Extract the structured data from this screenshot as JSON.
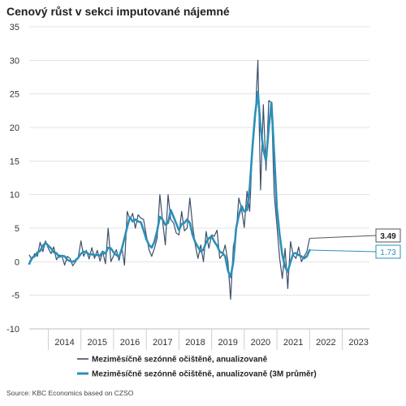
{
  "chart_data": {
    "type": "line",
    "title": "Cenový růst v sekci imputované nájemné",
    "source": "Source: KBC Economics based on CZSO",
    "ylim": [
      -10,
      35
    ],
    "yticks": [
      -10,
      -5,
      0,
      5,
      10,
      15,
      20,
      25,
      30,
      35
    ],
    "xticks": [
      "2014",
      "2015",
      "2016",
      "2017",
      "2018",
      "2019",
      "2020",
      "2021",
      "2022",
      "2023"
    ],
    "grid": true,
    "legend_position": "bottom",
    "x_start": "2013-06",
    "series": [
      {
        "name": "Meziměsíčně sezónně očištěně, anualizovaně",
        "color": "#3c4f68",
        "end_label": "3.49",
        "values": [
          1.0,
          0.3,
          1.2,
          0.8,
          2.9,
          1.5,
          3.1,
          2.0,
          1.2,
          2.2,
          0.3,
          1.0,
          0.9,
          -0.5,
          0.8,
          0.5,
          -0.6,
          0.0,
          0.6,
          3.1,
          0.8,
          1.7,
          0.4,
          2.1,
          0.5,
          1.7,
          0.1,
          1.5,
          -0.3,
          5.0,
          0.0,
          0.9,
          1.8,
          0.2,
          2.2,
          -0.5,
          7.5,
          6.3,
          7.2,
          5.0,
          7.0,
          6.5,
          6.3,
          4.0,
          1.8,
          0.8,
          2.0,
          3.5,
          10.0,
          6.1,
          2.5,
          10.0,
          6.3,
          5.8,
          4.3,
          4.0,
          7.5,
          4.6,
          5.0,
          9.5,
          5.5,
          2.5,
          0.5,
          2.5,
          0.0,
          4.5,
          2.0,
          4.0,
          3.8,
          4.7,
          0.5,
          1.0,
          2.5,
          0.0,
          -5.6,
          2.3,
          4.2,
          9.5,
          7.9,
          5.1,
          10.5,
          7.5,
          17.0,
          21.0,
          30.0,
          10.7,
          23.4,
          13.6,
          24.0,
          23.7,
          10.0,
          5.5,
          0.5,
          -2.5,
          2.0,
          -4.0,
          3.0,
          1.0,
          0.5,
          2.2,
          0.0,
          0.8,
          1.5,
          3.49
        ]
      },
      {
        "name": "Meziměsíčně sezónně očištěně, anualizovaně (3M průměr)",
        "color": "#2c8fb8",
        "end_label": "1.73",
        "values": [
          -0.3,
          0.6,
          0.8,
          1.4,
          1.6,
          2.4,
          2.8,
          2.4,
          2.0,
          1.4,
          1.3,
          0.7,
          0.9,
          0.8,
          0.3,
          0.1,
          0.0,
          0.2,
          0.6,
          1.2,
          1.5,
          1.4,
          1.1,
          1.1,
          1.0,
          1.0,
          0.9,
          1.5,
          1.2,
          2.1,
          2.0,
          1.4,
          1.0,
          0.7,
          1.9,
          3.5,
          5.2,
          6.6,
          6.0,
          6.3,
          6.0,
          5.9,
          4.7,
          3.4,
          2.5,
          2.1,
          3.0,
          4.6,
          6.7,
          6.3,
          5.5,
          5.8,
          7.7,
          6.7,
          5.7,
          4.7,
          5.6,
          5.8,
          6.3,
          5.8,
          4.0,
          2.9,
          2.2,
          1.5,
          1.8,
          2.9,
          3.5,
          3.8,
          3.0,
          2.4,
          1.5,
          1.3,
          0.8,
          -1.3,
          -2.3,
          0.0,
          5.0,
          6.9,
          8.3,
          7.5,
          7.7,
          11.0,
          17.0,
          22.0,
          25.3,
          20.0,
          16.7,
          15.0,
          20.0,
          23.7,
          16.0,
          8.0,
          4.0,
          1.0,
          -0.8,
          -1.5,
          0.0,
          1.2,
          1.3,
          1.0,
          0.8,
          0.5,
          0.8,
          1.73
        ]
      }
    ]
  }
}
